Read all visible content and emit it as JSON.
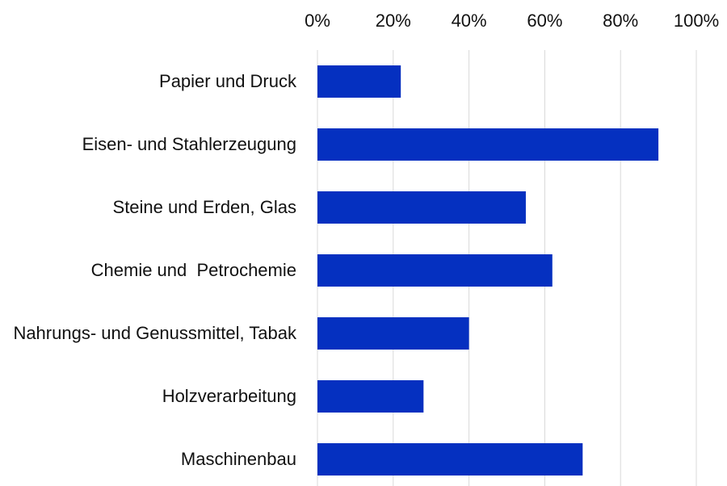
{
  "chart_data": {
    "type": "bar",
    "orientation": "horizontal",
    "categories": [
      "Papier und Druck",
      "Eisen- und Stahlerzeugung",
      "Steine und Erden, Glas",
      "Chemie und  Petrochemie",
      "Nahrungs- und Genussmittel, Tabak",
      "Holzverarbeitung",
      "Maschinenbau"
    ],
    "values": [
      22,
      90,
      55,
      62,
      40,
      28,
      70
    ],
    "color": "#0530c0",
    "xlim": [
      0,
      100
    ],
    "xticks": [
      {
        "value": 0,
        "label": "0%"
      },
      {
        "value": 20,
        "label": "20%"
      },
      {
        "value": 40,
        "label": "40%"
      },
      {
        "value": 60,
        "label": "60%"
      },
      {
        "value": 80,
        "label": "80%"
      },
      {
        "value": 100,
        "label": "100%"
      }
    ],
    "grid": true
  }
}
